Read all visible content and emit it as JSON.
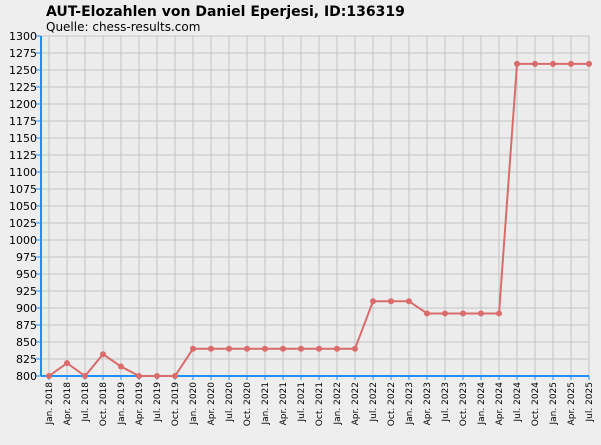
{
  "chart_data": {
    "type": "line",
    "title": "AUT-Elozahlen von Daniel Eperjesi, ID:136319",
    "subtitle": "Quelle: chess-results.com",
    "xlabel": "",
    "ylabel": "",
    "ylim": [
      800,
      1300
    ],
    "ystep": 25,
    "grid": true,
    "legend": "none",
    "categories": [
      "Jan. 2018",
      "Apr. 2018",
      "Jul. 2018",
      "Oct. 2018",
      "Jan. 2019",
      "Apr. 2019",
      "Jul. 2019",
      "Oct. 2019",
      "Jan. 2020",
      "Apr. 2020",
      "Jul. 2020",
      "Oct. 2020",
      "Jan. 2021",
      "Apr. 2021",
      "Jul. 2021",
      "Oct. 2021",
      "Jan. 2022",
      "Apr. 2022",
      "Jul. 2022",
      "Oct. 2022",
      "Jan. 2023",
      "Apr. 2023",
      "Jul. 2023",
      "Oct. 2023",
      "Jan. 2024",
      "Apr. 2024",
      "Jul. 2024",
      "Oct. 2024",
      "Jan. 2025",
      "Apr. 2025",
      "Jul. 2025"
    ],
    "values": [
      800,
      819,
      800,
      832,
      814,
      800,
      800,
      800,
      840,
      840,
      840,
      840,
      840,
      840,
      840,
      840,
      840,
      840,
      910,
      910,
      910,
      892,
      892,
      892,
      892,
      892,
      1259,
      1259,
      1259,
      1259,
      1259
    ],
    "colors": {
      "line": "#d96b6b",
      "axis": "#1e90ff",
      "grid": "#c4c4c4"
    }
  }
}
